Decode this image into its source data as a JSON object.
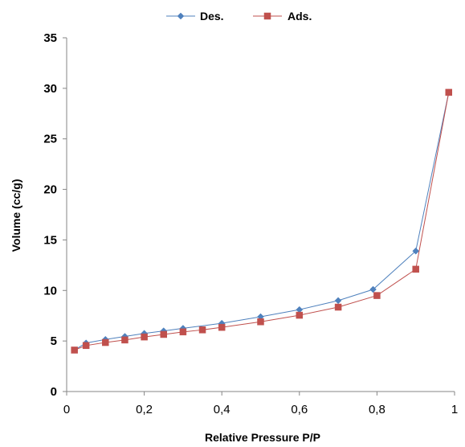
{
  "chart_data": {
    "type": "line",
    "title": "",
    "xlabel": "Relative Pressure P/P",
    "ylabel": "Volume (cc/g)",
    "xlim": [
      0,
      1
    ],
    "ylim": [
      0,
      35
    ],
    "x_ticks": [
      0,
      0.2,
      0.4,
      0.6,
      0.8,
      1
    ],
    "x_tick_labels": [
      "0",
      "0,2",
      "0,4",
      "0,6",
      "0,8",
      "1"
    ],
    "y_ticks": [
      0,
      5,
      10,
      15,
      20,
      25,
      30,
      35
    ],
    "y_tick_labels": [
      "0",
      "5",
      "10",
      "15",
      "20",
      "25",
      "30",
      "35"
    ],
    "grid": false,
    "legend_position": "top-center",
    "series": [
      {
        "name": "Des.",
        "color": "#4F81BD",
        "marker": "diamond",
        "x": [
          0.02,
          0.05,
          0.1,
          0.15,
          0.2,
          0.25,
          0.3,
          0.4,
          0.5,
          0.6,
          0.7,
          0.79,
          0.9,
          0.985
        ],
        "y": [
          4.1,
          4.8,
          5.15,
          5.45,
          5.75,
          6.0,
          6.25,
          6.75,
          7.4,
          8.1,
          9.0,
          10.1,
          13.9,
          29.6
        ]
      },
      {
        "name": "Ads.",
        "color": "#C0504D",
        "marker": "square",
        "x": [
          0.02,
          0.05,
          0.1,
          0.15,
          0.2,
          0.25,
          0.3,
          0.35,
          0.4,
          0.5,
          0.6,
          0.7,
          0.8,
          0.9,
          0.985
        ],
        "y": [
          4.1,
          4.55,
          4.85,
          5.1,
          5.4,
          5.65,
          5.9,
          6.1,
          6.35,
          6.9,
          7.55,
          8.35,
          9.5,
          12.1,
          29.6
        ]
      }
    ]
  }
}
